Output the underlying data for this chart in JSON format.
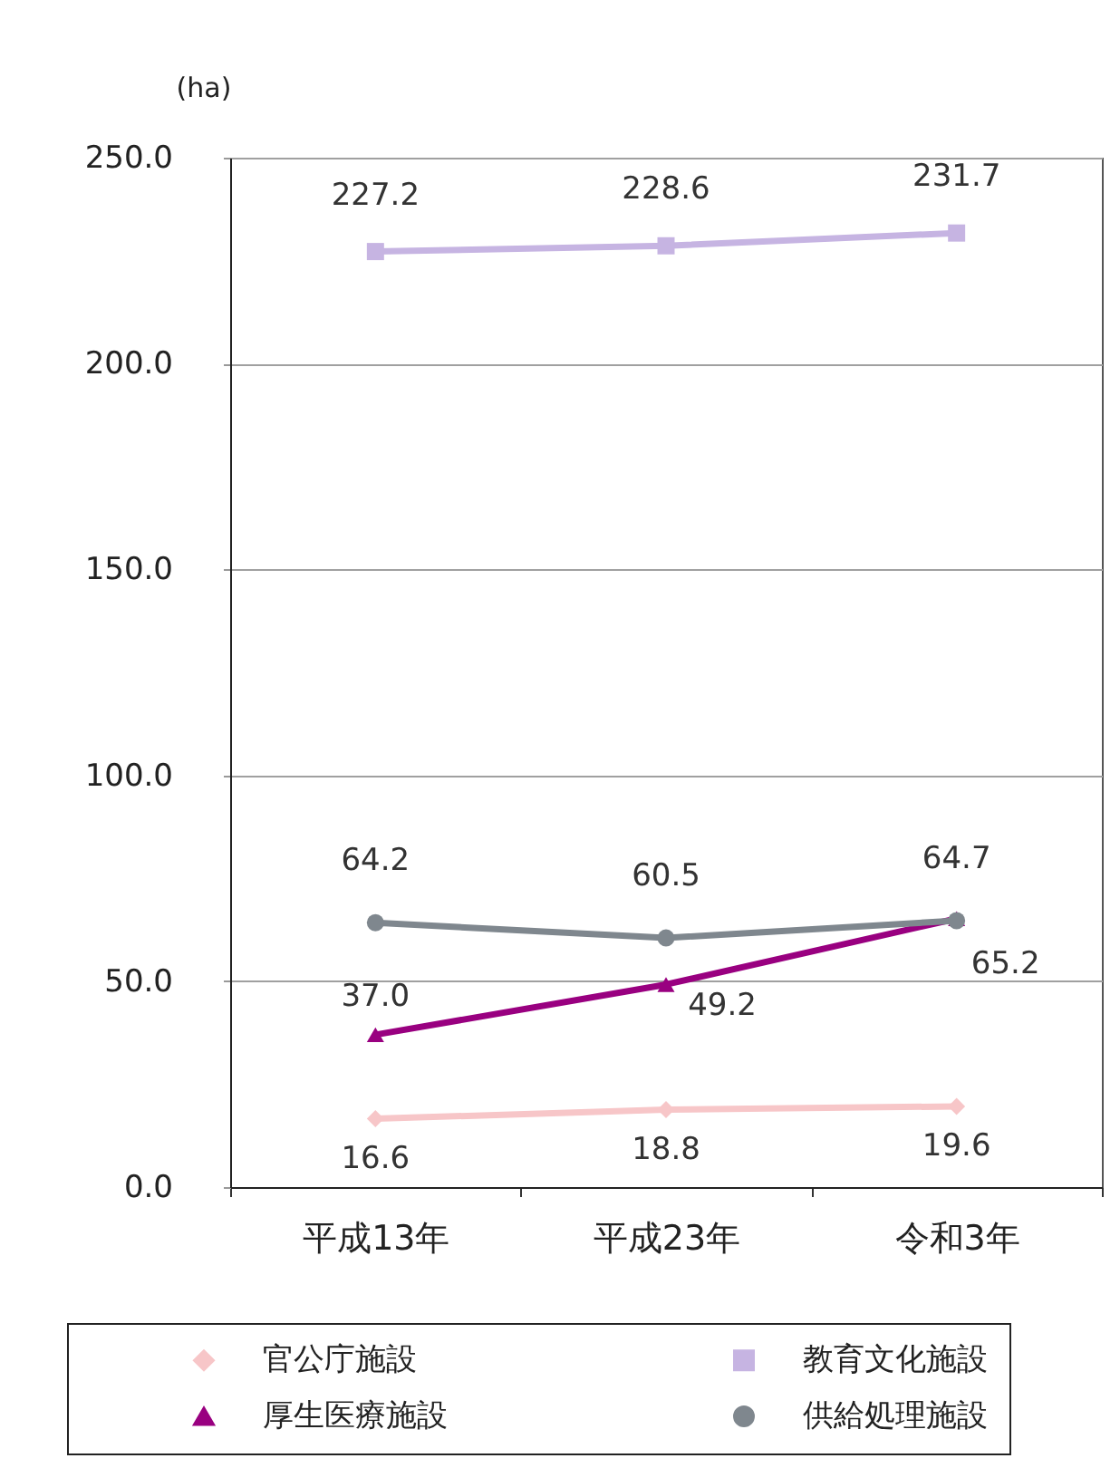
{
  "chart_data": {
    "type": "line",
    "ylabel": "(ha)",
    "categories": [
      "平成13年",
      "平成23年",
      "令和3年"
    ],
    "series": [
      {
        "name": "官公庁施設",
        "color": "#f7c6c8",
        "marker": "diamond",
        "values": [
          16.6,
          18.8,
          19.6
        ],
        "value_labels": [
          "16.6",
          "18.8",
          "19.6"
        ]
      },
      {
        "name": "教育文化施設",
        "color": "#c6b4e2",
        "marker": "square",
        "values": [
          227.2,
          228.6,
          231.7
        ],
        "value_labels": [
          "227.2",
          "228.6",
          "231.7"
        ]
      },
      {
        "name": "厚生医療施設",
        "color": "#990080",
        "marker": "triangle",
        "values": [
          37.0,
          49.2,
          65.2
        ],
        "value_labels": [
          "37.0",
          "49.2",
          "65.2"
        ]
      },
      {
        "name": "供給処理施設",
        "color": "#7f878e",
        "marker": "circle",
        "values": [
          64.2,
          60.5,
          64.7
        ],
        "value_labels": [
          "64.2",
          "60.5",
          "64.7"
        ]
      }
    ],
    "ylim": [
      0,
      250
    ],
    "yticks": [
      {
        "value": 0,
        "label": "0.0"
      },
      {
        "value": 50,
        "label": "50.0"
      },
      {
        "value": 100,
        "label": "100.0"
      },
      {
        "value": 150,
        "label": "150.0"
      },
      {
        "value": 200,
        "label": "200.0"
      },
      {
        "value": 250,
        "label": "250.0"
      }
    ],
    "grid": "y",
    "legend": "bottom",
    "line_style": "solid"
  }
}
